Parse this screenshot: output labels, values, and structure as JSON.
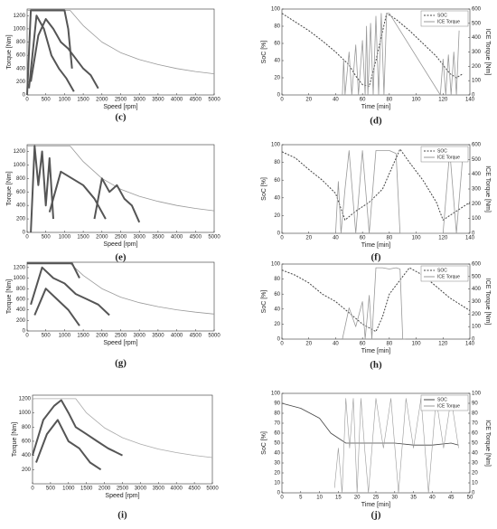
{
  "chart_data": [
    {
      "type": "line",
      "label": "(c)",
      "xlabel": "Speed [rpm]",
      "ylabel": "Torque [Nm]",
      "xlim": [
        0,
        5000
      ],
      "ylim": [
        0,
        1300
      ],
      "xticks": [
        0,
        500,
        1000,
        1500,
        2000,
        2500,
        3000,
        3500,
        4000,
        4500,
        5000
      ],
      "yticks": [
        0,
        200,
        400,
        600,
        800,
        1000,
        1200
      ],
      "series": [
        {
          "color": "#999999",
          "width": 0.8,
          "x": [
            0,
            1150,
            1500,
            2000,
            2500,
            3000,
            3500,
            4000,
            4500,
            5000
          ],
          "values": [
            1280,
            1280,
            1050,
            800,
            640,
            535,
            460,
            400,
            355,
            320
          ]
        },
        {
          "color": "#555555",
          "width": 2,
          "x": [
            0,
            100,
            200,
            300,
            400,
            500,
            600,
            700,
            800,
            900,
            1000,
            1100,
            1200
          ],
          "values": [
            0,
            1280,
            1280,
            1280,
            1280,
            1280,
            1280,
            1280,
            1280,
            1280,
            1280,
            1000,
            400
          ]
        },
        {
          "color": "#555555",
          "width": 2,
          "x": [
            100,
            300,
            500,
            700,
            900,
            1100,
            1300,
            1500,
            1700,
            1900
          ],
          "values": [
            200,
            900,
            1150,
            1000,
            800,
            700,
            550,
            400,
            300,
            100
          ]
        },
        {
          "color": "#555555",
          "width": 2,
          "x": [
            50,
            250,
            450,
            650,
            850,
            1050,
            1250
          ],
          "values": [
            100,
            1200,
            1000,
            600,
            400,
            250,
            50
          ]
        }
      ]
    },
    {
      "type": "line",
      "label": "(d)",
      "xlabel": "Time [min]",
      "ylabel": "SoC [%]",
      "y2label": "ICE Torque [Nm]",
      "xlim": [
        0,
        140
      ],
      "ylim": [
        0,
        100
      ],
      "y2lim": [
        0,
        600
      ],
      "xticks": [
        0,
        20,
        40,
        60,
        80,
        100,
        120,
        140
      ],
      "yticks": [
        0,
        20,
        40,
        60,
        80,
        100
      ],
      "y2ticks": [
        0,
        100,
        200,
        300,
        400,
        500,
        600
      ],
      "legend": "upper right",
      "series": [
        {
          "name": "SOC",
          "color": "#444444",
          "dash": true,
          "width": 1,
          "x": [
            0,
            10,
            20,
            30,
            40,
            50,
            55,
            60,
            65,
            70,
            78,
            85,
            95,
            105,
            115,
            120,
            125,
            130,
            135
          ],
          "values": [
            95,
            85,
            75,
            63,
            50,
            35,
            22,
            12,
            10,
            40,
            95,
            88,
            75,
            60,
            45,
            35,
            25,
            20,
            25
          ]
        },
        {
          "name": "ICE Torque",
          "color": "#999999",
          "width": 0.8,
          "axis": "y2",
          "x": [
            45,
            46,
            47,
            50,
            52,
            55,
            57,
            60,
            62,
            63,
            64,
            66,
            68,
            70,
            72,
            74,
            76,
            78,
            80,
            118,
            120,
            122,
            124,
            126,
            128,
            130,
            132
          ],
          "values": [
            0,
            250,
            0,
            300,
            0,
            350,
            0,
            380,
            0,
            480,
            0,
            500,
            0,
            550,
            0,
            570,
            0,
            570,
            570,
            0,
            250,
            0,
            280,
            0,
            300,
            0,
            450
          ]
        }
      ]
    },
    {
      "type": "line",
      "label": "(e)",
      "xlabel": "Speed [rpm]",
      "ylabel": "Torque [Nm]",
      "xlim": [
        0,
        5000
      ],
      "ylim": [
        0,
        1300
      ],
      "xticks": [
        0,
        500,
        1000,
        1500,
        2000,
        2500,
        3000,
        3500,
        4000,
        4500,
        5000
      ],
      "yticks": [
        0,
        200,
        400,
        600,
        800,
        1000,
        1200
      ],
      "series": [
        {
          "color": "#999999",
          "width": 0.8,
          "x": [
            0,
            1150,
            1500,
            2000,
            2500,
            3000,
            3500,
            4000,
            4500,
            5000
          ],
          "values": [
            1280,
            1280,
            1050,
            800,
            640,
            535,
            460,
            400,
            355,
            320
          ]
        },
        {
          "color": "#555555",
          "width": 2,
          "x": [
            100,
            200,
            300,
            400,
            500,
            600,
            700
          ],
          "values": [
            0,
            1280,
            700,
            1200,
            400,
            1100,
            200
          ]
        },
        {
          "color": "#555555",
          "width": 2,
          "x": [
            600,
            900,
            1200,
            1500,
            1800,
            2100
          ],
          "values": [
            300,
            900,
            800,
            700,
            500,
            200
          ]
        },
        {
          "color": "#555555",
          "width": 2,
          "x": [
            1800,
            2000,
            2200,
            2400,
            2600,
            2800,
            3000
          ],
          "values": [
            200,
            800,
            600,
            700,
            500,
            400,
            150
          ]
        }
      ]
    },
    {
      "type": "line",
      "label": "(f)",
      "xlabel": "Time [min]",
      "ylabel": "SoC [%]",
      "y2label": "ICE Torque [Nm]",
      "xlim": [
        0,
        140
      ],
      "ylim": [
        0,
        100
      ],
      "y2lim": [
        0,
        600
      ],
      "xticks": [
        0,
        20,
        40,
        60,
        80,
        100,
        120,
        140
      ],
      "yticks": [
        0,
        20,
        40,
        60,
        80,
        100
      ],
      "y2ticks": [
        0,
        100,
        200,
        300,
        400,
        500,
        600
      ],
      "legend": "upper right",
      "series": [
        {
          "name": "SOC",
          "color": "#444444",
          "dash": true,
          "width": 1,
          "x": [
            0,
            10,
            20,
            30,
            40,
            47,
            55,
            65,
            75,
            88,
            95,
            105,
            115,
            120,
            130,
            140
          ],
          "values": [
            92,
            85,
            72,
            60,
            45,
            15,
            25,
            35,
            50,
            95,
            80,
            60,
            35,
            15,
            25,
            35
          ]
        },
        {
          "name": "ICE Torque",
          "color": "#999999",
          "width": 0.8,
          "axis": "y2",
          "x": [
            40,
            42,
            44,
            47,
            50,
            55,
            60,
            65,
            70,
            75,
            80,
            85,
            88,
            118,
            120,
            125,
            130,
            135
          ],
          "values": [
            0,
            350,
            0,
            300,
            560,
            0,
            560,
            0,
            560,
            560,
            560,
            540,
            0,
            0,
            0,
            560,
            0,
            560
          ]
        }
      ]
    },
    {
      "type": "line",
      "label": "(g)",
      "xlabel": "Speed [rpm]",
      "ylabel": "Torque [Nm]",
      "xlim": [
        0,
        5000
      ],
      "ylim": [
        0,
        1300
      ],
      "xticks": [
        0,
        500,
        1000,
        1500,
        2000,
        2500,
        3000,
        3500,
        4000,
        4500,
        5000
      ],
      "yticks": [
        0,
        200,
        400,
        600,
        800,
        1000,
        1200
      ],
      "series": [
        {
          "color": "#999999",
          "width": 0.8,
          "x": [
            0,
            1150,
            1500,
            2000,
            2500,
            3000,
            3500,
            4000,
            4500,
            5000
          ],
          "values": [
            1280,
            1280,
            1050,
            800,
            640,
            535,
            460,
            400,
            355,
            320
          ]
        },
        {
          "color": "#555555",
          "width": 2,
          "x": [
            0,
            200,
            400,
            600,
            800,
            1000,
            1200,
            1400
          ],
          "values": [
            1280,
            1280,
            1280,
            1280,
            1280,
            1280,
            1280,
            1000
          ]
        },
        {
          "color": "#555555",
          "width": 2,
          "x": [
            100,
            400,
            700,
            1000,
            1300,
            1600,
            1900,
            2200
          ],
          "values": [
            500,
            1200,
            1000,
            900,
            700,
            600,
            500,
            300
          ]
        },
        {
          "color": "#555555",
          "width": 2,
          "x": [
            200,
            500,
            800,
            1100,
            1400
          ],
          "values": [
            300,
            800,
            600,
            400,
            100
          ]
        }
      ]
    },
    {
      "type": "line",
      "label": "(h)",
      "xlabel": "Time [min]",
      "ylabel": "SoC [%]",
      "y2label": "ICE Torque [Nm]",
      "xlim": [
        0,
        140
      ],
      "ylim": [
        0,
        100
      ],
      "y2lim": [
        0,
        600
      ],
      "xticks": [
        0,
        20,
        40,
        60,
        80,
        100,
        120,
        140
      ],
      "yticks": [
        0,
        20,
        40,
        60,
        80,
        100
      ],
      "y2ticks": [
        0,
        100,
        200,
        300,
        400,
        500,
        600
      ],
      "legend": "upper right",
      "series": [
        {
          "name": "SOC",
          "color": "#444444",
          "dash": true,
          "width": 1,
          "x": [
            0,
            10,
            20,
            30,
            40,
            50,
            60,
            70,
            75,
            80,
            95,
            105,
            115,
            125,
            140
          ],
          "values": [
            92,
            85,
            75,
            60,
            50,
            35,
            20,
            10,
            30,
            60,
            95,
            85,
            70,
            55,
            38
          ]
        },
        {
          "name": "ICE Torque",
          "color": "#999999",
          "width": 0.8,
          "axis": "y2",
          "x": [
            45,
            50,
            55,
            60,
            62,
            65,
            67,
            70,
            75,
            80,
            85,
            88,
            90,
            92
          ],
          "values": [
            0,
            250,
            100,
            300,
            0,
            350,
            0,
            570,
            570,
            560,
            570,
            560,
            0,
            0
          ]
        }
      ]
    },
    {
      "type": "line",
      "label": "(i)",
      "xlabel": "Speed [rpm]",
      "ylabel": "Torque [Nm]",
      "xlim": [
        0,
        5000
      ],
      "ylim": [
        0,
        1250
      ],
      "xticks": [
        0,
        500,
        1000,
        1500,
        2000,
        2500,
        3000,
        3500,
        4000,
        4500,
        5000
      ],
      "yticks": [
        200,
        400,
        600,
        800,
        1000,
        1200
      ],
      "series": [
        {
          "color": "#aaaaaa",
          "width": 0.8,
          "x": [
            0,
            1200,
            1500,
            2000,
            2500,
            3000,
            3500,
            4000,
            4500,
            5000
          ],
          "values": [
            1200,
            1200,
            1000,
            790,
            650,
            560,
            490,
            440,
            400,
            370
          ]
        },
        {
          "color": "#555555",
          "width": 2,
          "x": [
            0,
            300,
            600,
            800,
            1000,
            1200,
            1500,
            1800,
            2100,
            2500
          ],
          "values": [
            400,
            900,
            1100,
            1180,
            1000,
            800,
            700,
            600,
            500,
            400
          ]
        },
        {
          "color": "#555555",
          "width": 2,
          "x": [
            100,
            400,
            700,
            1000,
            1300,
            1600,
            1900
          ],
          "values": [
            300,
            700,
            900,
            600,
            500,
            300,
            200
          ]
        }
      ]
    },
    {
      "type": "line",
      "label": "(j)",
      "xlabel": "Time [min]",
      "ylabel": "SoC [%]",
      "y2label": "ICE Torque [Nm]",
      "xlim": [
        0,
        50
      ],
      "ylim": [
        0,
        100
      ],
      "y2lim": [
        0,
        100
      ],
      "xticks": [
        0,
        5,
        10,
        15,
        20,
        25,
        30,
        35,
        40,
        45,
        50
      ],
      "yticks": [
        0,
        10,
        20,
        30,
        40,
        50,
        60,
        70,
        80,
        90,
        100
      ],
      "y2ticks": [
        0,
        10,
        20,
        30,
        40,
        50,
        60,
        70,
        80,
        90,
        100
      ],
      "legend": "upper right",
      "series": [
        {
          "name": "SOC",
          "color": "#444444",
          "width": 0.8,
          "x": [
            0,
            5,
            10,
            13,
            15,
            17,
            20,
            25,
            30,
            35,
            40,
            45,
            47
          ],
          "values": [
            90,
            85,
            75,
            60,
            55,
            50,
            50,
            50,
            50,
            48,
            48,
            50,
            48
          ]
        },
        {
          "name": "ICE Torque",
          "color": "#999999",
          "width": 0.6,
          "axis": "y2",
          "x": [
            14,
            15,
            16,
            17,
            18,
            19,
            20,
            21,
            22,
            23,
            25,
            27,
            29,
            31,
            33,
            35,
            37,
            39,
            41,
            43,
            45,
            47
          ],
          "values": [
            5,
            45,
            0,
            95,
            45,
            95,
            0,
            95,
            45,
            0,
            95,
            45,
            95,
            0,
            95,
            45,
            95,
            0,
            95,
            45,
            95,
            45
          ]
        }
      ]
    }
  ]
}
